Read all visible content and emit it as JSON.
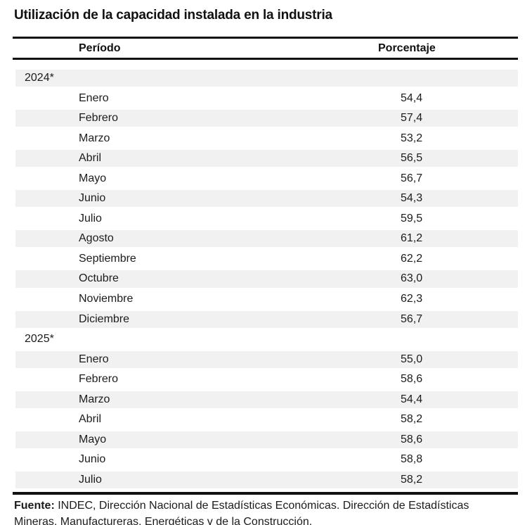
{
  "title": "Utilización de la capacidad instalada en la industria",
  "table": {
    "columns": {
      "period": "Período",
      "percentage": "Porcentaje"
    },
    "rows": [
      {
        "label": "2024*",
        "type": "year",
        "value": ""
      },
      {
        "label": "Enero",
        "type": "month",
        "value": "54,4"
      },
      {
        "label": "Febrero",
        "type": "month",
        "value": "57,4"
      },
      {
        "label": "Marzo",
        "type": "month",
        "value": "53,2"
      },
      {
        "label": "Abril",
        "type": "month",
        "value": "56,5"
      },
      {
        "label": "Mayo",
        "type": "month",
        "value": "56,7"
      },
      {
        "label": "Junio",
        "type": "month",
        "value": "54,3"
      },
      {
        "label": "Julio",
        "type": "month",
        "value": "59,5"
      },
      {
        "label": "Agosto",
        "type": "month",
        "value": "61,2"
      },
      {
        "label": "Septiembre",
        "type": "month",
        "value": "62,2"
      },
      {
        "label": "Octubre",
        "type": "month",
        "value": "63,0"
      },
      {
        "label": "Noviembre",
        "type": "month",
        "value": "62,3"
      },
      {
        "label": "Diciembre",
        "type": "month",
        "value": "56,7"
      },
      {
        "label": "2025*",
        "type": "year",
        "value": ""
      },
      {
        "label": "Enero",
        "type": "month",
        "value": "55,0"
      },
      {
        "label": "Febrero",
        "type": "month",
        "value": "58,6"
      },
      {
        "label": "Marzo",
        "type": "month",
        "value": "54,4"
      },
      {
        "label": "Abril",
        "type": "month",
        "value": "58,2"
      },
      {
        "label": "Mayo",
        "type": "month",
        "value": "58,6"
      },
      {
        "label": "Junio",
        "type": "month",
        "value": "58,8"
      },
      {
        "label": "Julio",
        "type": "month",
        "value": "58,2"
      }
    ]
  },
  "chart_data": {
    "type": "table",
    "title": "Utilización de la capacidad instalada en la industria",
    "columns": [
      "Período",
      "Porcentaje"
    ],
    "series": [
      {
        "name": "2024*",
        "categories": [
          "Enero",
          "Febrero",
          "Marzo",
          "Abril",
          "Mayo",
          "Junio",
          "Julio",
          "Agosto",
          "Septiembre",
          "Octubre",
          "Noviembre",
          "Diciembre"
        ],
        "values": [
          54.4,
          57.4,
          53.2,
          56.5,
          56.7,
          54.3,
          59.5,
          61.2,
          62.2,
          63.0,
          62.3,
          56.7
        ]
      },
      {
        "name": "2025*",
        "categories": [
          "Enero",
          "Febrero",
          "Marzo",
          "Abril",
          "Mayo",
          "Junio",
          "Julio"
        ],
        "values": [
          55.0,
          58.6,
          54.4,
          58.2,
          58.6,
          58.8,
          58.2
        ]
      }
    ]
  },
  "footer": {
    "source_label": "Fuente:",
    "line1_rest": " INDEC, Dirección Nacional de Estadísticas Económicas. Dirección de Estadísticas",
    "line2": "Mineras, Manufactureras, Energéticas y de la Construcción."
  },
  "colors": {
    "stripe": "#f1f1f2",
    "rule": "#111111",
    "text": "#1c1c1c"
  }
}
